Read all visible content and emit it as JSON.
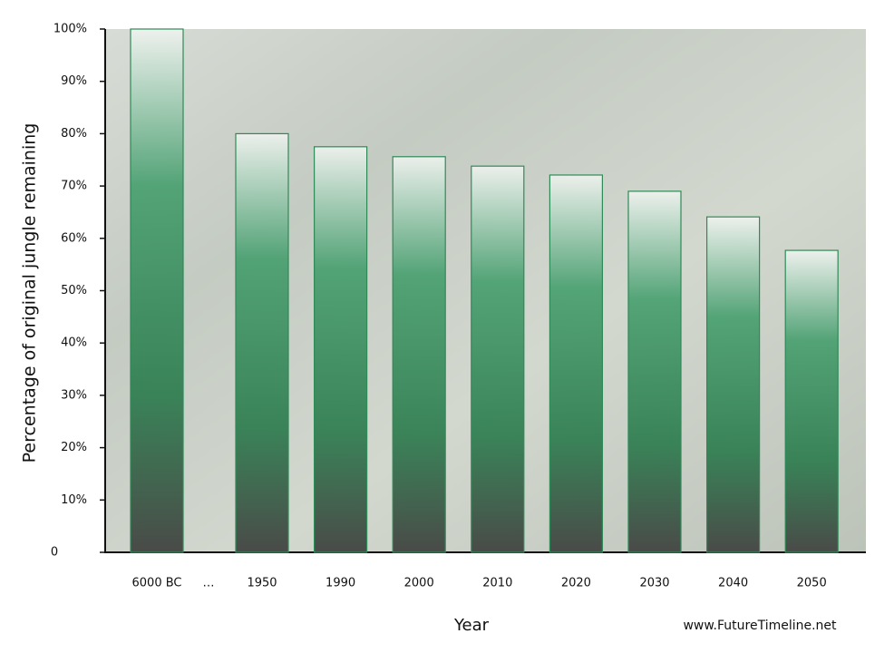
{
  "chart_data": {
    "type": "bar",
    "categories": [
      "6000 BC",
      "1950",
      "1990",
      "2000",
      "2010",
      "2020",
      "2030",
      "2040",
      "2050"
    ],
    "values": [
      100,
      80,
      77.5,
      75.6,
      73.8,
      72.1,
      69,
      64.1,
      57.7
    ],
    "color": "#2f8a58",
    "gap_label": "…",
    "ylim": [
      0,
      100
    ],
    "yticks": [
      0,
      {
        "value": 10,
        "label": "10%"
      },
      {
        "value": 20,
        "label": "20%"
      },
      {
        "value": 30,
        "label": "30%"
      },
      {
        "value": 40,
        "label": "40%"
      },
      {
        "value": 50,
        "label": "50%"
      },
      {
        "value": 60,
        "label": "60%"
      },
      {
        "value": 70,
        "label": "70%"
      },
      {
        "value": 80,
        "label": "80%"
      },
      {
        "value": 90,
        "label": "90%"
      },
      {
        "value": 100,
        "label": "100%"
      }
    ],
    "ylabel": "Percentage of original jungle remaining",
    "xlabel": "Year",
    "source": "www.FutureTimeline.net"
  }
}
